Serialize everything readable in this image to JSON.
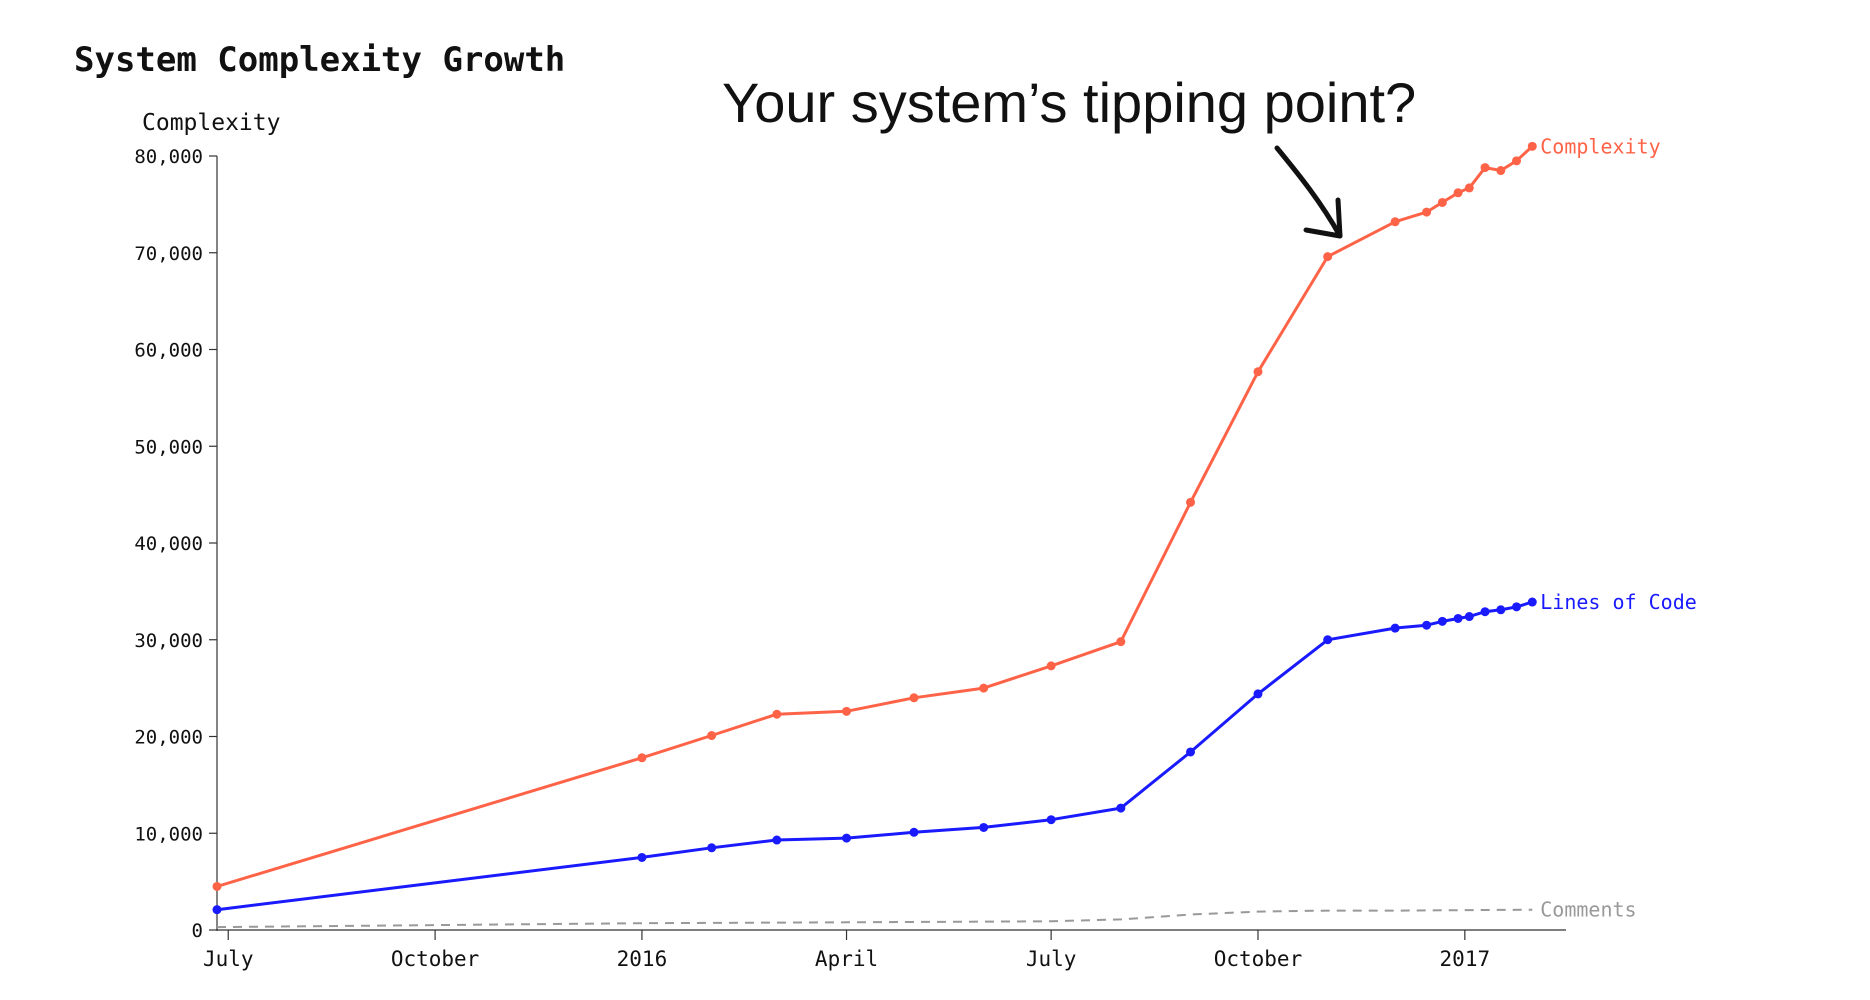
{
  "chart_data": {
    "type": "line",
    "title": "System Complexity Growth",
    "annotation": "Your system’s tipping point?",
    "ylabel": "Complexity",
    "xlabel": "",
    "ylim": [
      0,
      80000
    ],
    "y_ticks": [
      0,
      10000,
      20000,
      30000,
      40000,
      50000,
      60000,
      70000,
      80000
    ],
    "y_tick_labels": [
      "0",
      "10,000",
      "20,000",
      "30,000",
      "40,000",
      "50,000",
      "60,000",
      "70,000",
      "80,000"
    ],
    "x_range": [
      "2015-06-26",
      "2017-02-15"
    ],
    "x_ticks": [
      "2015-07-01",
      "2015-10-01",
      "2016-01-01",
      "2016-04-01",
      "2016-07-01",
      "2016-10-01",
      "2017-01-01"
    ],
    "x_tick_labels": [
      "July",
      "October",
      "2016",
      "April",
      "July",
      "October",
      "2017"
    ],
    "grid": false,
    "legend": "inline labels at line ends",
    "series": [
      {
        "name": "Complexity",
        "color": "#ff6347",
        "style": "solid",
        "markers": true,
        "points": [
          [
            "2015-06-26",
            4500
          ],
          [
            "2016-01-01",
            17800
          ],
          [
            "2016-02-01",
            20100
          ],
          [
            "2016-03-01",
            22300
          ],
          [
            "2016-04-01",
            22600
          ],
          [
            "2016-05-01",
            24000
          ],
          [
            "2016-06-01",
            25000
          ],
          [
            "2016-07-01",
            27300
          ],
          [
            "2016-08-01",
            29800
          ],
          [
            "2016-09-01",
            44200
          ],
          [
            "2016-10-01",
            57700
          ],
          [
            "2016-11-01",
            69600
          ],
          [
            "2016-12-01",
            73200
          ],
          [
            "2016-12-15",
            74200
          ],
          [
            "2016-12-22",
            75200
          ],
          [
            "2016-12-29",
            76200
          ],
          [
            "2017-01-03",
            76700
          ],
          [
            "2017-01-10",
            78800
          ],
          [
            "2017-01-17",
            78500
          ],
          [
            "2017-01-24",
            79500
          ],
          [
            "2017-01-31",
            81000
          ]
        ]
      },
      {
        "name": "Lines of Code",
        "color": "#1a1aff",
        "style": "solid",
        "markers": true,
        "points": [
          [
            "2015-06-26",
            2100
          ],
          [
            "2016-01-01",
            7500
          ],
          [
            "2016-02-01",
            8500
          ],
          [
            "2016-03-01",
            9300
          ],
          [
            "2016-04-01",
            9500
          ],
          [
            "2016-05-01",
            10100
          ],
          [
            "2016-06-01",
            10600
          ],
          [
            "2016-07-01",
            11400
          ],
          [
            "2016-08-01",
            12600
          ],
          [
            "2016-09-01",
            18400
          ],
          [
            "2016-10-01",
            24400
          ],
          [
            "2016-11-01",
            30000
          ],
          [
            "2016-12-01",
            31200
          ],
          [
            "2016-12-15",
            31500
          ],
          [
            "2016-12-22",
            31900
          ],
          [
            "2016-12-29",
            32200
          ],
          [
            "2017-01-03",
            32400
          ],
          [
            "2017-01-10",
            32900
          ],
          [
            "2017-01-17",
            33100
          ],
          [
            "2017-01-24",
            33400
          ],
          [
            "2017-01-31",
            33900
          ]
        ]
      },
      {
        "name": "Comments",
        "color": "#999999",
        "style": "dashed",
        "markers": false,
        "points": [
          [
            "2015-06-26",
            300
          ],
          [
            "2016-01-01",
            700
          ],
          [
            "2016-04-01",
            800
          ],
          [
            "2016-07-01",
            900
          ],
          [
            "2016-08-01",
            1100
          ],
          [
            "2016-09-01",
            1600
          ],
          [
            "2016-10-01",
            1900
          ],
          [
            "2016-11-01",
            2000
          ],
          [
            "2016-12-01",
            2000
          ],
          [
            "2017-01-31",
            2100
          ]
        ]
      }
    ]
  }
}
